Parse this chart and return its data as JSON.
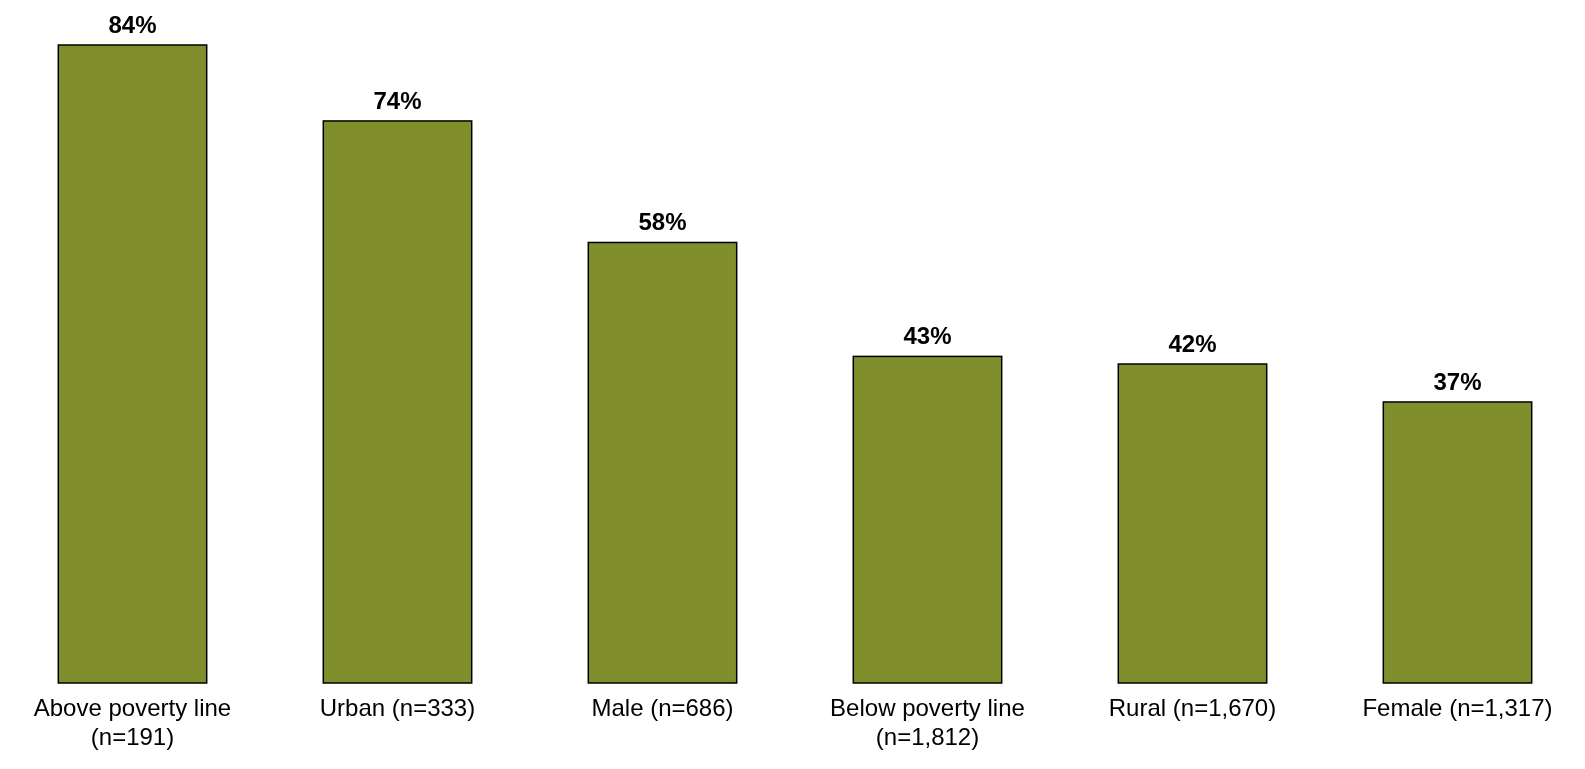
{
  "chart_data": {
    "type": "bar",
    "categories": [
      "Above poverty line (n=191)",
      "Urban (n=333)",
      "Male (n=686)",
      "Below poverty line (n=1,812)",
      "Rural (n=1,670)",
      "Female (n=1,317)"
    ],
    "values": [
      84,
      74,
      58,
      43,
      42,
      37
    ],
    "value_labels": [
      "84%",
      "74%",
      "58%",
      "43%",
      "42%",
      "37%"
    ],
    "color": "#808e2b"
  }
}
